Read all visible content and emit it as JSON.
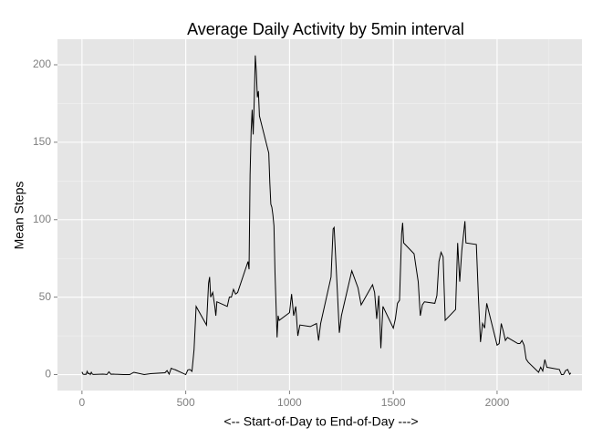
{
  "chart_data": {
    "type": "line",
    "title": "Average Daily Activity by 5min interval",
    "x_label": "<-- Start-of-Day   to   End-of-Day --->",
    "y_label": "Mean Steps",
    "x": [
      0,
      5,
      10,
      15,
      20,
      25,
      30,
      35,
      40,
      45,
      50,
      55,
      100,
      110,
      120,
      130,
      140,
      150,
      200,
      230,
      250,
      300,
      330,
      400,
      410,
      420,
      430,
      440,
      450,
      500,
      510,
      520,
      530,
      540,
      550,
      600,
      610,
      615,
      620,
      630,
      640,
      645,
      650,
      700,
      710,
      720,
      730,
      740,
      750,
      800,
      805,
      810,
      815,
      820,
      825,
      830,
      835,
      840,
      845,
      850,
      855,
      900,
      905,
      910,
      915,
      920,
      925,
      930,
      935,
      940,
      945,
      950,
      1000,
      1010,
      1020,
      1030,
      1040,
      1050,
      1100,
      1130,
      1140,
      1150,
      1200,
      1210,
      1215,
      1230,
      1240,
      1250,
      1300,
      1330,
      1345,
      1400,
      1410,
      1420,
      1430,
      1440,
      1450,
      1500,
      1510,
      1520,
      1530,
      1540,
      1545,
      1550,
      1600,
      1610,
      1620,
      1630,
      1640,
      1650,
      1700,
      1710,
      1720,
      1730,
      1740,
      1750,
      1800,
      1810,
      1820,
      1830,
      1845,
      1850,
      1900,
      1910,
      1920,
      1930,
      1940,
      1950,
      2000,
      2010,
      2020,
      2030,
      2040,
      2050,
      2100,
      2110,
      2120,
      2130,
      2140,
      2150,
      2200,
      2210,
      2220,
      2230,
      2240,
      2250,
      2300,
      2310,
      2320,
      2330,
      2340,
      2350,
      2355
    ],
    "series": [
      {
        "name": "Mean Steps",
        "color": "#000000",
        "values": [
          1.7,
          0.3,
          0.1,
          0.2,
          0.1,
          2.1,
          0.5,
          0.9,
          0,
          1.5,
          0.3,
          0.1,
          0.3,
          0.2,
          0,
          1.8,
          0.2,
          0.3,
          0,
          0,
          1.5,
          0,
          0.6,
          1.2,
          2.6,
          0.3,
          4.1,
          3.5,
          3.1,
          0,
          3,
          3.3,
          2.1,
          16,
          44,
          32,
          59,
          63,
          50,
          53,
          44,
          38,
          47,
          44,
          50,
          50,
          55,
          52,
          53,
          73,
          68,
          129,
          157,
          171,
          155,
          177,
          206,
          196,
          179,
          183,
          167,
          143,
          124,
          110,
          108,
          103,
          96,
          66,
          45,
          24,
          38,
          35,
          40,
          52,
          38,
          44,
          25,
          32,
          31,
          33,
          22,
          33,
          63,
          94,
          95,
          55,
          27,
          38,
          67,
          56,
          45,
          58,
          53,
          36,
          51,
          17,
          44,
          30,
          36,
          46,
          48,
          91,
          98,
          85,
          78,
          69,
          60,
          38,
          45,
          47,
          46,
          51,
          73,
          79,
          76,
          35,
          42,
          85,
          60,
          80,
          99,
          85,
          84,
          50,
          21,
          33,
          30,
          46,
          19,
          20,
          33,
          28,
          22,
          24,
          20,
          20,
          22,
          19,
          10,
          8,
          1.5,
          4.8,
          2.3,
          9.7,
          4.7,
          4.5,
          3.3,
          0,
          0.1,
          2.6,
          3.3,
          0.2,
          1.1
        ]
      }
    ],
    "xlim": [
      -118,
      2409
    ],
    "ylim": [
      -10.3,
      216.5
    ],
    "xticks": [
      0,
      500,
      1000,
      1500,
      2000
    ],
    "yticks": [
      0,
      50,
      100,
      150,
      200
    ],
    "x_minor_ticks": [
      250,
      750,
      1250,
      1750,
      2250
    ],
    "y_minor_ticks": [
      25,
      75,
      125,
      175
    ],
    "grid": true,
    "background": "#e5e5e5"
  }
}
